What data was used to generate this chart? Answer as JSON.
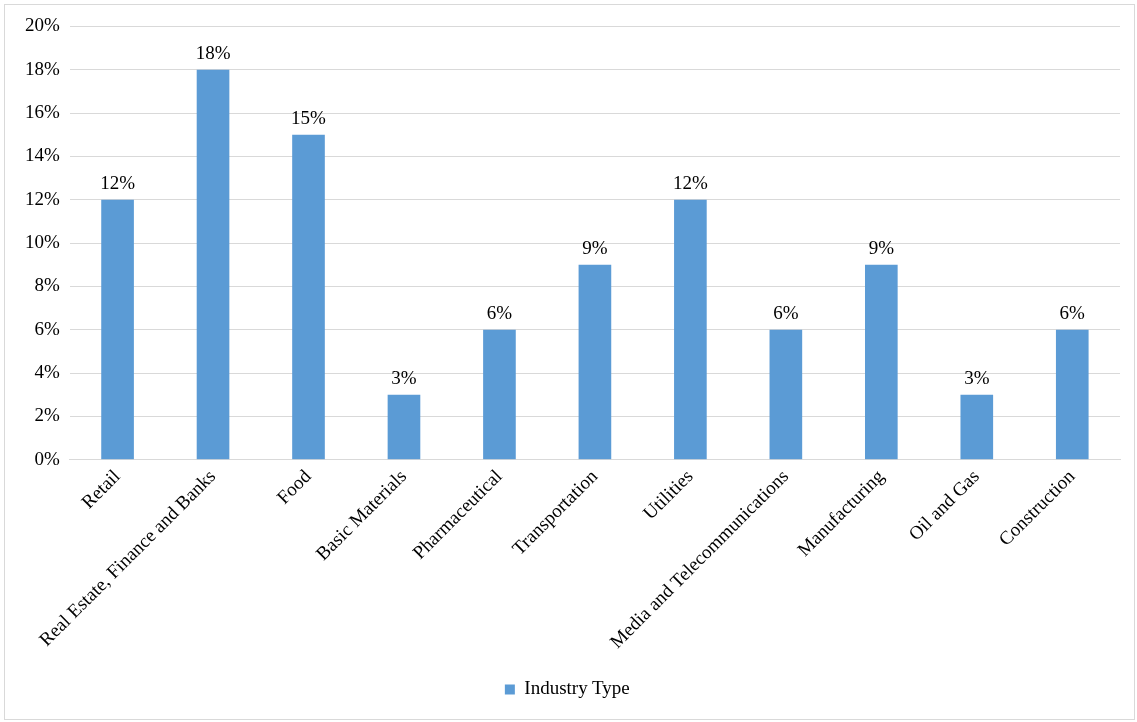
{
  "chart_data": {
    "type": "bar",
    "categories": [
      "Retail",
      "Real Estate, Finance and Banks",
      "Food",
      "Basic Materials",
      "Pharmaceutical",
      "Transportation",
      "Utilities",
      "Media and Telecommunications",
      "Manufacturing",
      "Oil and Gas",
      "Construction"
    ],
    "series": [
      {
        "name": "Industry Type",
        "color": "#5b9bd5",
        "values": [
          12,
          18,
          15,
          3,
          6,
          9,
          12,
          6,
          9,
          3,
          6
        ],
        "value_labels": [
          "12%",
          "18%",
          "15%",
          "3%",
          "6%",
          "9%",
          "12%",
          "6%",
          "9%",
          "3%",
          "6%"
        ]
      }
    ],
    "ylim": [
      0,
      20
    ],
    "yticks": [
      {
        "value": 0,
        "label": "0%"
      },
      {
        "value": 2,
        "label": "2%"
      },
      {
        "value": 4,
        "label": "4%"
      },
      {
        "value": 6,
        "label": "6%"
      },
      {
        "value": 8,
        "label": "8%"
      },
      {
        "value": 10,
        "label": "10%"
      },
      {
        "value": 12,
        "label": "12%"
      },
      {
        "value": 14,
        "label": "14%"
      },
      {
        "value": 16,
        "label": "16%"
      },
      {
        "value": 18,
        "label": "18%"
      },
      {
        "value": 20,
        "label": "20%"
      }
    ],
    "grid": "y",
    "legend": "bottom"
  }
}
